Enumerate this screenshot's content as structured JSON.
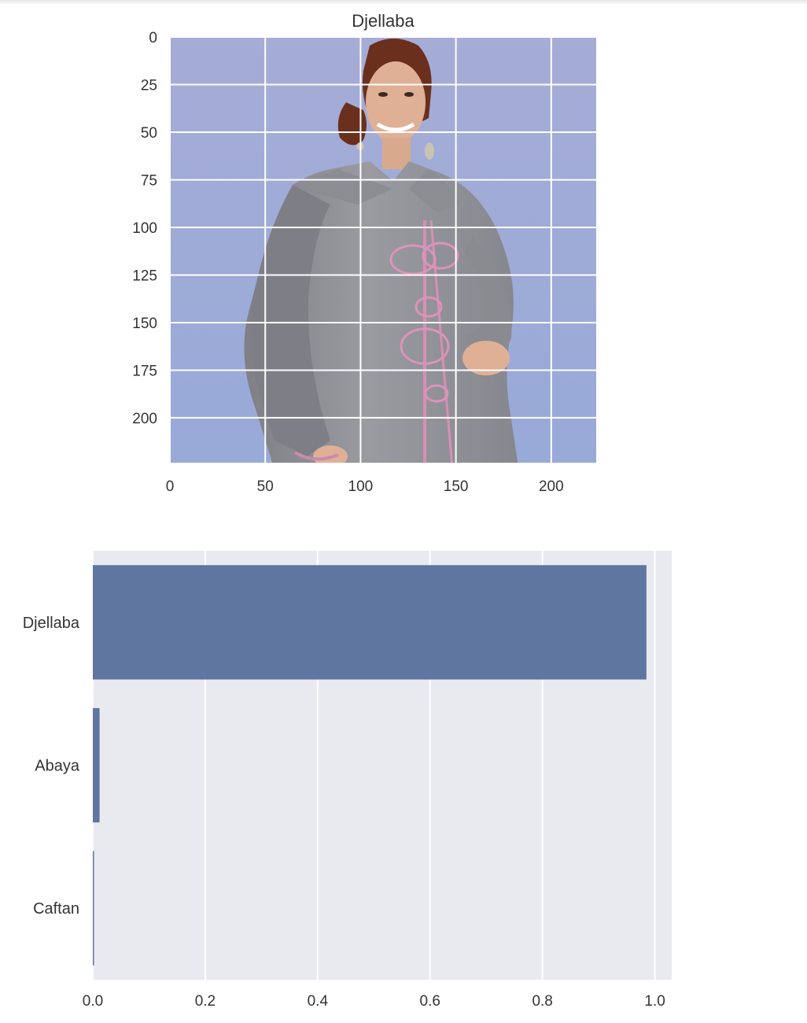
{
  "chart_data": [
    {
      "type": "image",
      "title": "Djellaba",
      "image_description": "Photo of a woman wearing a grey hooded djellaba with pink embroidery",
      "xlim": [
        0,
        224
      ],
      "ylim": [
        224,
        0
      ],
      "xticks": [
        0,
        50,
        100,
        150,
        200
      ],
      "yticks": [
        0,
        25,
        50,
        75,
        100,
        125,
        150,
        175,
        200
      ],
      "grid": true
    },
    {
      "type": "bar",
      "orientation": "horizontal",
      "categories": [
        "Djellaba",
        "Abaya",
        "Caftan"
      ],
      "values": [
        0.985,
        0.012,
        0.002
      ],
      "xlim": [
        0,
        1.03
      ],
      "xticks": [
        0.0,
        0.2,
        0.4,
        0.6,
        0.8,
        1.0
      ],
      "xlabel": "",
      "ylabel": "",
      "grid": true,
      "bar_color": "#5f76a0",
      "background": "#e9e9f0"
    }
  ]
}
